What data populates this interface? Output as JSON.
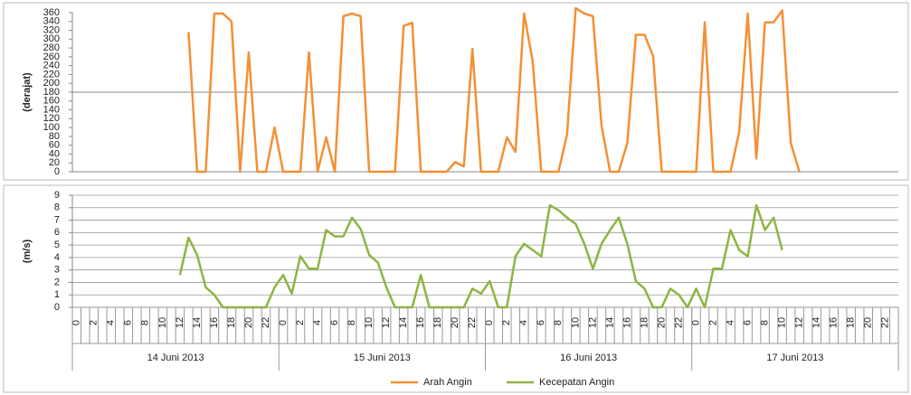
{
  "chart_data": {
    "type": "line",
    "categories": [
      "0",
      null,
      "2",
      null,
      "4",
      null,
      "6",
      null,
      "8",
      null,
      "10",
      null,
      "12",
      null,
      "14",
      null,
      "16",
      null,
      "18",
      null,
      "20",
      null,
      "22",
      null,
      "0",
      null,
      "2",
      null,
      "4",
      null,
      "6",
      null,
      "8",
      null,
      "10",
      null,
      "12",
      null,
      "14",
      null,
      "16",
      null,
      "18",
      null,
      "20",
      null,
      "22",
      null,
      "0",
      null,
      "2",
      null,
      "4",
      null,
      "6",
      null,
      "8",
      null,
      "10",
      null,
      "12",
      null,
      "14",
      null,
      "16",
      null,
      "18",
      null,
      "20",
      null,
      "22",
      null,
      "0",
      null,
      "2",
      null,
      "4",
      null,
      "6",
      null,
      "8",
      null,
      "10",
      null,
      "12",
      null,
      "14",
      null,
      "16",
      null,
      "18",
      null,
      "20",
      null,
      "22",
      null
    ],
    "groups": [
      "14 Juni 2013",
      "15 Juni 2013",
      "16 Juni 2013",
      "17 Juni 2013"
    ],
    "panels": [
      {
        "ylabel": "(derajat)",
        "ylim": [
          0,
          360
        ],
        "yticks": [
          0,
          20,
          40,
          60,
          80,
          100,
          120,
          140,
          160,
          180,
          200,
          220,
          240,
          260,
          280,
          300,
          320,
          340,
          360
        ],
        "hlines": [
          180
        ],
        "grid": false,
        "series": [
          {
            "name": "Arah Angin",
            "color": "#f39035",
            "values": [
              null,
              null,
              null,
              null,
              null,
              null,
              null,
              null,
              null,
              null,
              null,
              null,
              null,
              316,
              0,
              0,
              358,
              358,
              340,
              0,
              270,
              0,
              0,
              100,
              0,
              0,
              0,
              270,
              0,
              78,
              0,
              352,
              358,
              352,
              0,
              0,
              0,
              0,
              330,
              337,
              0,
              0,
              0,
              0,
              22,
              12,
              278,
              0,
              0,
              0,
              78,
              45,
              358,
              250,
              0,
              0,
              0,
              85,
              370,
              358,
              352,
              105,
              0,
              0,
              65,
              310,
              310,
              262,
              0,
              0,
              0,
              0,
              0,
              338,
              0,
              0,
              0,
              90,
              358,
              30,
              338,
              338,
              365,
              65,
              0,
              null,
              null,
              null,
              null,
              null,
              null,
              null,
              null,
              null,
              null,
              null
            ]
          }
        ]
      },
      {
        "ylabel": "(m/s)",
        "ylim": [
          0,
          9
        ],
        "yticks": [
          0,
          1,
          2,
          3,
          4,
          5,
          6,
          7,
          8,
          9
        ],
        "grid": true,
        "series": [
          {
            "name": "Kecepatan Angin",
            "color": "#8db543",
            "values": [
              null,
              null,
              null,
              null,
              null,
              null,
              null,
              null,
              null,
              null,
              null,
              null,
              2.6,
              5.6,
              4.2,
              1.6,
              1.0,
              0,
              0,
              0,
              0,
              0,
              0,
              1.6,
              2.6,
              1.1,
              4.1,
              3.1,
              3.1,
              6.2,
              5.7,
              5.7,
              7.2,
              6.3,
              4.2,
              3.6,
              1.6,
              0,
              0,
              0,
              2.6,
              0,
              0,
              0,
              0,
              0,
              1.5,
              1.1,
              2.1,
              0,
              0,
              4.1,
              5.1,
              4.6,
              4.1,
              8.2,
              7.8,
              7.2,
              6.7,
              5.1,
              3.1,
              5.1,
              6.2,
              7.2,
              5.1,
              2.1,
              1.5,
              0,
              0,
              1.5,
              1.0,
              0,
              1.5,
              0,
              3.1,
              3.1,
              6.2,
              4.6,
              4.1,
              8.2,
              6.2,
              7.2,
              4.6,
              null,
              null,
              null,
              null,
              null,
              null,
              null,
              null,
              null,
              null,
              null,
              null,
              null
            ]
          }
        ]
      }
    ]
  }
}
